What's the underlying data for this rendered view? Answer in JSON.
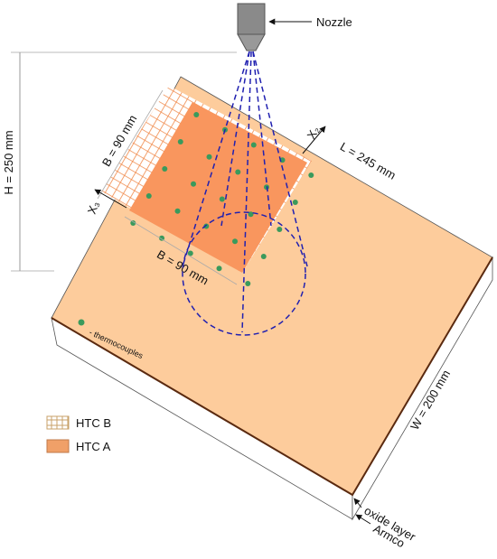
{
  "labels": {
    "nozzle": "Nozzle",
    "height": "H = 250 mm",
    "b_top": "B = 90 mm",
    "b_bottom": "B = 90 mm",
    "length": "L = 245 mm",
    "x2": "X₂",
    "x3": "X₃",
    "thermocouples": "- thermocouples",
    "width": "W = 200 mm",
    "oxide": "oxide layer",
    "armco": "Armco"
  },
  "legend": [
    {
      "label": "HTC B"
    },
    {
      "label": "HTC A"
    }
  ]
}
